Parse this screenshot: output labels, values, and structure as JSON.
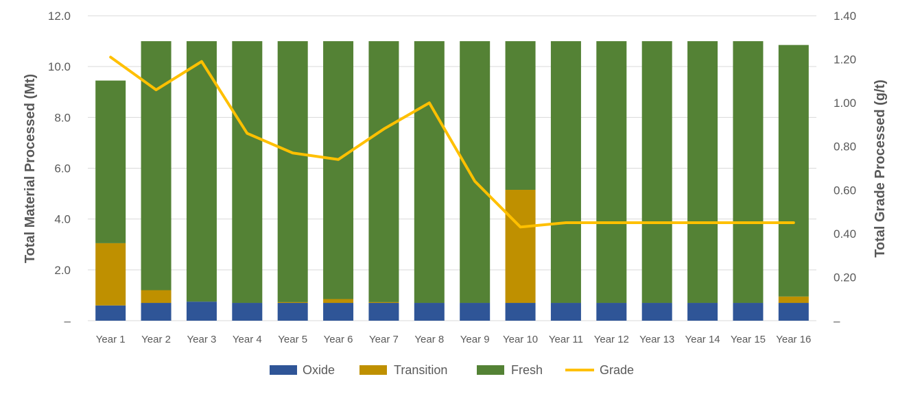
{
  "chart_data": {
    "type": "bar",
    "stacked": true,
    "categories": [
      "Year 1",
      "Year 2",
      "Year 3",
      "Year 4",
      "Year 5",
      "Year 6",
      "Year 7",
      "Year 8",
      "Year 9",
      "Year 10",
      "Year 11",
      "Year 12",
      "Year 13",
      "Year 14",
      "Year 15",
      "Year 16"
    ],
    "series": [
      {
        "name": "Oxide",
        "color": "#2F5597",
        "values": [
          0.6,
          0.7,
          0.75,
          0.7,
          0.7,
          0.7,
          0.7,
          0.7,
          0.7,
          0.7,
          0.7,
          0.7,
          0.7,
          0.7,
          0.7,
          0.7
        ]
      },
      {
        "name": "Transition",
        "color": "#BF9000",
        "values": [
          2.45,
          0.5,
          0.0,
          0.0,
          0.03,
          0.15,
          0.03,
          0.0,
          0.0,
          4.45,
          0.0,
          0.0,
          0.0,
          0.0,
          0.0,
          0.25
        ]
      },
      {
        "name": "Fresh",
        "color": "#548235",
        "values": [
          6.4,
          9.8,
          10.25,
          10.3,
          10.27,
          10.15,
          10.27,
          10.3,
          10.3,
          5.85,
          10.3,
          10.3,
          10.3,
          10.3,
          10.3,
          9.9
        ]
      }
    ],
    "line_series": {
      "name": "Grade",
      "color": "#FFC000",
      "axis": "right",
      "values": [
        1.21,
        1.06,
        1.19,
        0.86,
        0.77,
        0.74,
        0.88,
        1.0,
        0.64,
        0.43,
        0.45,
        0.45,
        0.45,
        0.45,
        0.45,
        0.45
      ]
    },
    "y_left": {
      "label": "Total Material Processed (Mt)",
      "lim": [
        0,
        12
      ],
      "ticks": [
        "–",
        "2.0",
        "4.0",
        "6.0",
        "8.0",
        "10.0",
        "12.0"
      ]
    },
    "y_right": {
      "label": "Total Grade Processed (g/t)",
      "lim": [
        0,
        1.4
      ],
      "ticks": [
        "–",
        "0.20",
        "0.40",
        "0.60",
        "0.80",
        "1.00",
        "1.20",
        "1.40"
      ]
    },
    "grid": true,
    "legend_position": "bottom",
    "legend": [
      "Oxide",
      "Transition",
      "Fresh",
      "Grade"
    ]
  }
}
